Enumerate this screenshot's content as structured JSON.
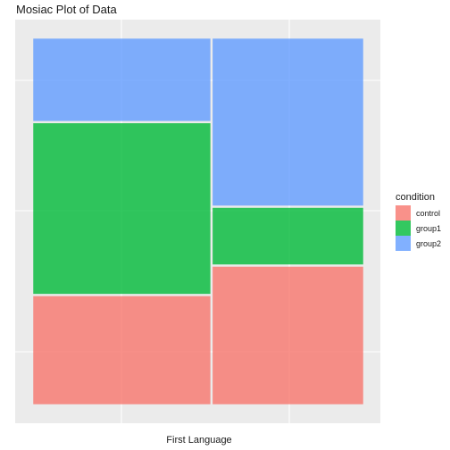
{
  "chart_data": {
    "type": "mosaic",
    "title": "Mosiac Plot of Data",
    "xlabel": "First Language",
    "ylabel": "",
    "grid": true,
    "legend": {
      "title": "condition",
      "placement": "right",
      "entries": [
        {
          "name": "control",
          "color": "#F8766D"
        },
        {
          "name": "group1",
          "color": "#00BA38"
        },
        {
          "name": "group2",
          "color": "#619CFF"
        }
      ]
    },
    "columns": [
      {
        "width_fraction": 0.54,
        "segments": [
          {
            "condition": "control",
            "fraction": 0.3
          },
          {
            "condition": "group1",
            "fraction": 0.47
          },
          {
            "condition": "group2",
            "fraction": 0.23
          }
        ]
      },
      {
        "width_fraction": 0.46,
        "segments": [
          {
            "condition": "control",
            "fraction": 0.38
          },
          {
            "condition": "group1",
            "fraction": 0.16
          },
          {
            "condition": "group2",
            "fraction": 0.46
          }
        ]
      }
    ]
  }
}
